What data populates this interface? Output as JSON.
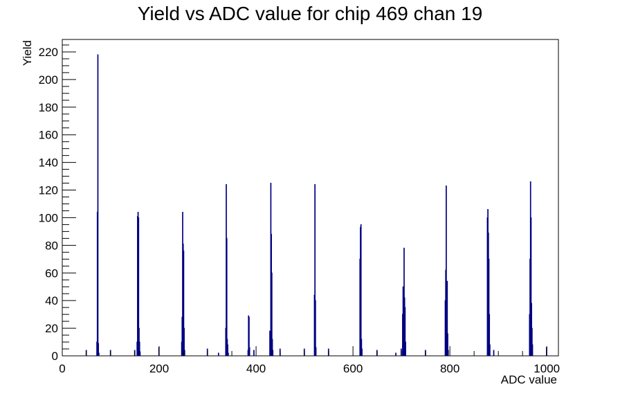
{
  "chart_data": {
    "type": "histogram",
    "title": "Yield vs ADC value for chip 469 chan 19",
    "xlabel": "ADC value",
    "ylabel": "Yield",
    "xlim": [
      0,
      1024
    ],
    "ylim": [
      0,
      229
    ],
    "x_ticks": [
      0,
      200,
      400,
      600,
      800,
      1000
    ],
    "y_ticks": [
      0,
      20,
      40,
      60,
      80,
      100,
      120,
      140,
      160,
      180,
      200,
      220
    ],
    "grid": false,
    "legend": "none",
    "line_color": "#000080",
    "bin_width": 1,
    "bins": [
      [
        49,
        4
      ],
      [
        71,
        10
      ],
      [
        72,
        104
      ],
      [
        73,
        218
      ],
      [
        74,
        9
      ],
      [
        75,
        2
      ],
      [
        99,
        4
      ],
      [
        149,
        4
      ],
      [
        154,
        10
      ],
      [
        155,
        101
      ],
      [
        156,
        104
      ],
      [
        157,
        100
      ],
      [
        158,
        20
      ],
      [
        159,
        10
      ],
      [
        160,
        3
      ],
      [
        199,
        6
      ],
      [
        246,
        10
      ],
      [
        247,
        28
      ],
      [
        248,
        104
      ],
      [
        249,
        81
      ],
      [
        250,
        76
      ],
      [
        251,
        20
      ],
      [
        252,
        4
      ],
      [
        299,
        5
      ],
      [
        322,
        2
      ],
      [
        337,
        20
      ],
      [
        338,
        124
      ],
      [
        339,
        85
      ],
      [
        340,
        12
      ],
      [
        341,
        8
      ],
      [
        342,
        2
      ],
      [
        383,
        4
      ],
      [
        384,
        29
      ],
      [
        385,
        28
      ],
      [
        386,
        6
      ],
      [
        395,
        4
      ],
      [
        428,
        18
      ],
      [
        429,
        15
      ],
      [
        430,
        125
      ],
      [
        431,
        88
      ],
      [
        432,
        60
      ],
      [
        433,
        12
      ],
      [
        434,
        4
      ],
      [
        449,
        5
      ],
      [
        499,
        5
      ],
      [
        520,
        44
      ],
      [
        521,
        124
      ],
      [
        522,
        40
      ],
      [
        523,
        6
      ],
      [
        549,
        5
      ],
      [
        614,
        70
      ],
      [
        615,
        93
      ],
      [
        616,
        95
      ],
      [
        617,
        12
      ],
      [
        618,
        5
      ],
      [
        649,
        4
      ],
      [
        688,
        2
      ],
      [
        699,
        5
      ],
      [
        702,
        30
      ],
      [
        703,
        50
      ],
      [
        704,
        35
      ],
      [
        705,
        78
      ],
      [
        706,
        42
      ],
      [
        707,
        35
      ],
      [
        708,
        10
      ],
      [
        749,
        4
      ],
      [
        790,
        40
      ],
      [
        791,
        62
      ],
      [
        792,
        123
      ],
      [
        793,
        45
      ],
      [
        794,
        54
      ],
      [
        795,
        16
      ],
      [
        796,
        4
      ],
      [
        877,
        100
      ],
      [
        878,
        106
      ],
      [
        879,
        89
      ],
      [
        880,
        70
      ],
      [
        881,
        30
      ],
      [
        882,
        8
      ],
      [
        890,
        4
      ],
      [
        964,
        30
      ],
      [
        965,
        70
      ],
      [
        966,
        126
      ],
      [
        967,
        100
      ],
      [
        968,
        38
      ],
      [
        969,
        20
      ],
      [
        970,
        8
      ],
      [
        999,
        6
      ]
    ]
  }
}
